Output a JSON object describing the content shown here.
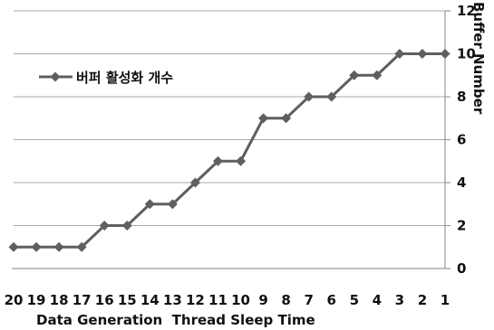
{
  "chart_data": {
    "type": "line",
    "title": "",
    "xlabel": "Data Generation  Thread Sleep Time",
    "ylabel": "Buffer Number",
    "categories": [
      "20",
      "19",
      "18",
      "17",
      "16",
      "15",
      "14",
      "13",
      "12",
      "11",
      "10",
      "9",
      "8",
      "7",
      "6",
      "5",
      "4",
      "3",
      "2",
      "1"
    ],
    "series": [
      {
        "name": "버퍼 활성화 개수",
        "values": [
          1,
          1,
          1,
          1,
          2,
          2,
          3,
          3,
          4,
          5,
          5,
          7,
          7,
          8,
          8,
          9,
          9,
          10,
          10,
          10
        ],
        "color": "#5f5f5f",
        "marker": "diamond"
      }
    ],
    "ylim": [
      0,
      12
    ],
    "yticks": [
      0,
      2,
      4,
      6,
      8,
      10,
      12
    ],
    "grid": true,
    "y_axis_side": "right",
    "legend_position": "upper-left"
  }
}
